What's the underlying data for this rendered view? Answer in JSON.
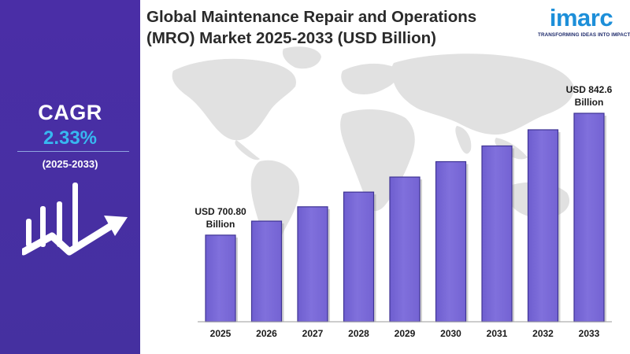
{
  "brand": {
    "logo_text": "imarc",
    "tagline": "TRANSFORMING IDEAS INTO IMPACT"
  },
  "sidebar": {
    "cagr_label": "CAGR",
    "cagr_value": "2.33%",
    "period": "(2025-2033)",
    "icon": "growth-chart-icon"
  },
  "colors": {
    "panel": "#4b2fa3",
    "bar": "#8070dc",
    "bar_edge": "#3f3494",
    "cagr_value": "#37b8f0",
    "logo": "#1d8fd9",
    "map": "#dcdcdc"
  },
  "chart_data": {
    "type": "bar",
    "title_lines": [
      "Global Maintenance Repair and Operations",
      "(MRO) Market 2025-2033 (USD Billion)"
    ],
    "categories": [
      "2025",
      "2026",
      "2027",
      "2028",
      "2029",
      "2030",
      "2031",
      "2032",
      "2033"
    ],
    "values": [
      700.8,
      717.1,
      733.8,
      750.9,
      768.4,
      786.3,
      804.6,
      823.4,
      842.6
    ],
    "ylim": [
      600,
      860
    ],
    "grid": false,
    "annotations": [
      {
        "index": 0,
        "lines": [
          "USD 700.80",
          "Billion"
        ]
      },
      {
        "index": 8,
        "lines": [
          "USD 842.6",
          "Billion"
        ]
      }
    ]
  }
}
